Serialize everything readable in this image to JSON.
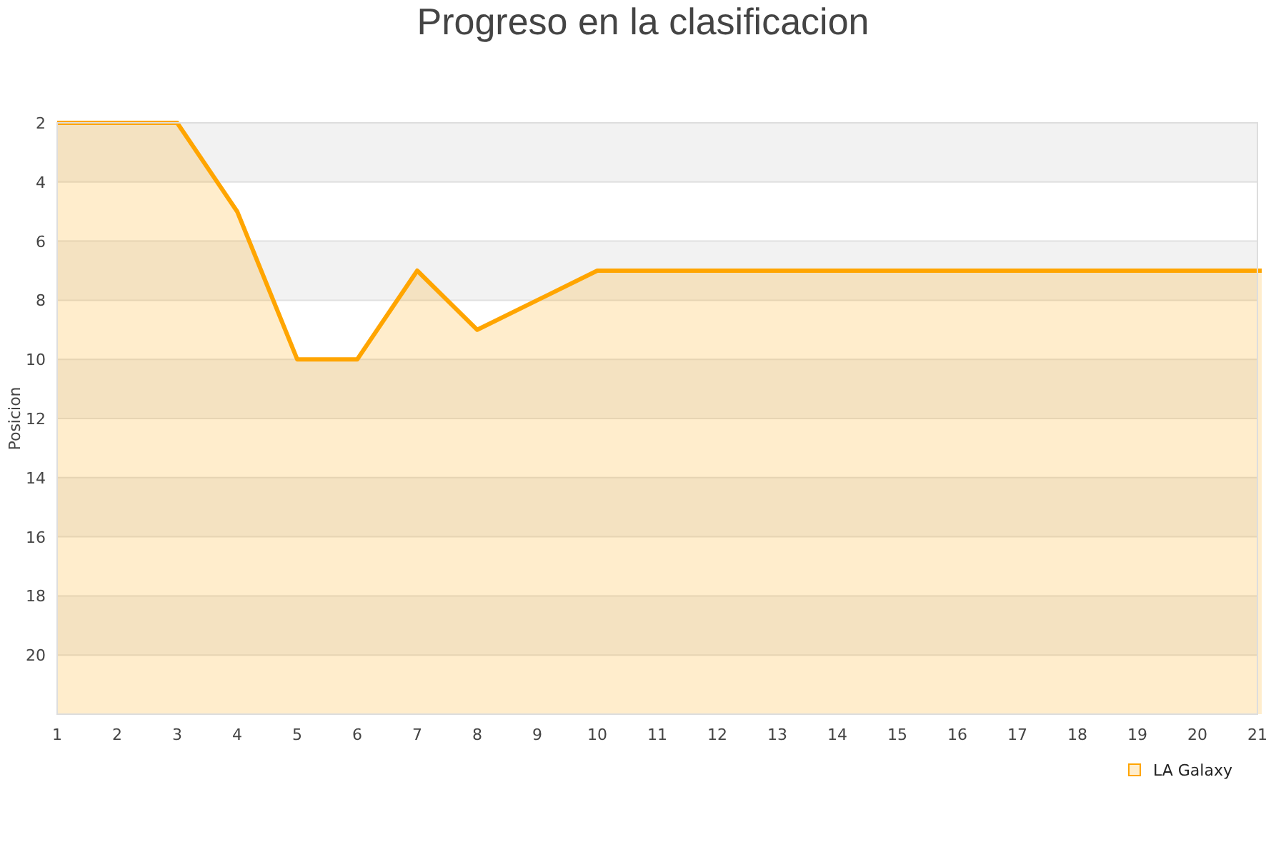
{
  "chart_data": {
    "type": "area",
    "title": "Progreso en la clasificacion",
    "ylabel": "Posicion",
    "x": [
      1,
      2,
      3,
      4,
      5,
      6,
      7,
      8,
      9,
      10,
      11,
      12,
      13,
      14,
      15,
      16,
      17,
      18,
      19,
      20,
      21
    ],
    "series": [
      {
        "name": "LA Galaxy",
        "color": "#ffa500",
        "values": [
          2,
          2,
          2,
          5,
          10,
          10,
          7,
          9,
          8,
          7,
          7,
          7,
          7,
          7,
          7,
          7,
          7,
          7,
          7,
          7,
          7
        ]
      }
    ],
    "xlim": [
      1,
      21
    ],
    "xticks": [
      1,
      2,
      3,
      4,
      5,
      6,
      7,
      8,
      9,
      10,
      11,
      12,
      13,
      14,
      15,
      16,
      17,
      18,
      19,
      20,
      21
    ],
    "ylim": [
      22,
      2
    ],
    "yticks": [
      2,
      4,
      6,
      8,
      10,
      12,
      14,
      16,
      18,
      20
    ],
    "grid": "y",
    "legend": "bottom right"
  }
}
